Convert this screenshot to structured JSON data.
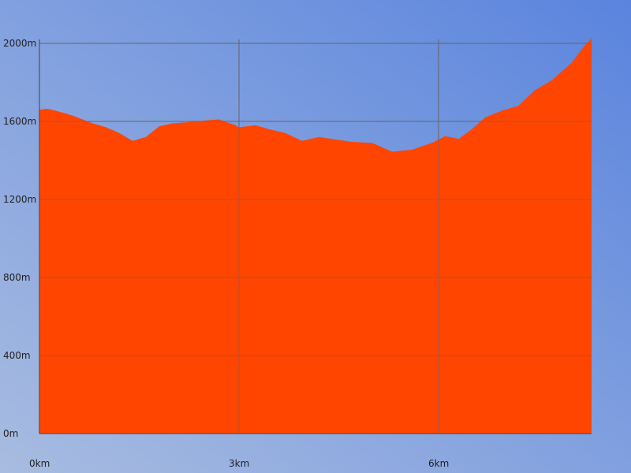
{
  "colors": {
    "background_start": "#a8bce0",
    "background_end": "#5a84de",
    "area_fill": "#ff4500",
    "grid": "#666666",
    "axis": "#444444",
    "text": "#222222"
  },
  "chart_data": {
    "type": "area",
    "title": "",
    "xlabel": "",
    "ylabel": "",
    "xlim": [
      0,
      8.3
    ],
    "ylim": [
      0,
      2000
    ],
    "grid": true,
    "x_ticks": [
      0,
      3,
      6
    ],
    "x_tick_labels": [
      "0km",
      "3km",
      "6km"
    ],
    "y_ticks": [
      0,
      400,
      800,
      1200,
      1600,
      2000
    ],
    "y_tick_labels": [
      "0m",
      "400m",
      "800m",
      "1200m",
      "1600m",
      "2000m"
    ],
    "series": [
      {
        "x": [
          0,
          0.12,
          0.3,
          0.5,
          0.8,
          1.0,
          1.2,
          1.4,
          1.6,
          1.8,
          2.0,
          2.2,
          2.5,
          2.7,
          2.95,
          3.0,
          3.25,
          3.45,
          3.7,
          3.95,
          4.2,
          4.5,
          4.7,
          5.0,
          5.3,
          5.6,
          5.9,
          6.1,
          6.3,
          6.5,
          6.7,
          6.95,
          7.2,
          7.45,
          7.7,
          8.0,
          8.2,
          8.3
        ],
        "y": [
          1660,
          1665,
          1650,
          1630,
          1590,
          1570,
          1540,
          1500,
          1520,
          1575,
          1590,
          1595,
          1605,
          1610,
          1580,
          1570,
          1580,
          1560,
          1540,
          1500,
          1520,
          1505,
          1495,
          1490,
          1445,
          1455,
          1490,
          1525,
          1510,
          1560,
          1620,
          1655,
          1680,
          1760,
          1810,
          1900,
          1990,
          2025
        ]
      }
    ]
  }
}
